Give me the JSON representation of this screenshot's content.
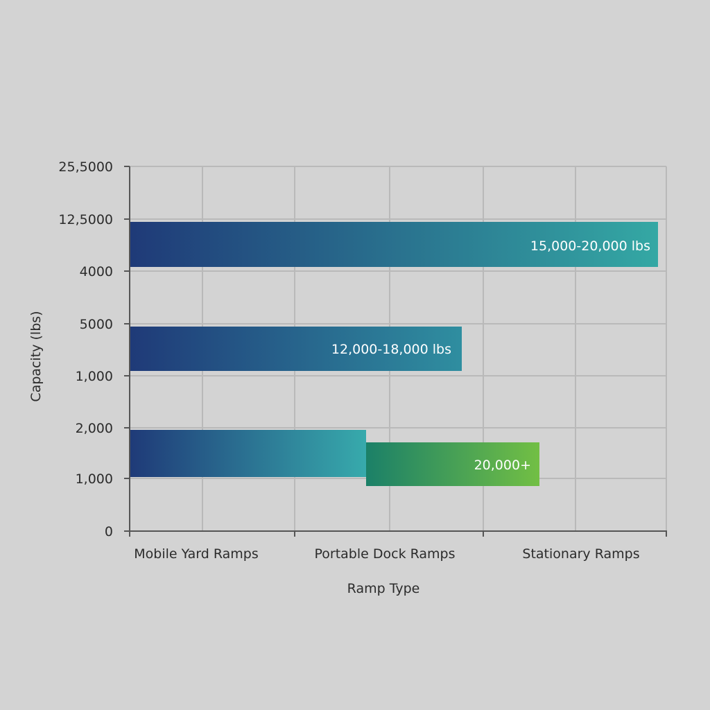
{
  "chart_data": {
    "type": "bar",
    "orientation": "horizontal",
    "title": "",
    "xlabel": "Ramp Type",
    "ylabel": "Capacity (lbs)",
    "y_tick_labels": [
      "25,5000",
      "12,5000",
      "4000",
      "5000",
      "1,000",
      "2,000",
      "1,000",
      "0"
    ],
    "categories": [
      "Mobile Yard Ramps",
      "Portable Dock Ramps",
      "Stationary Ramps"
    ],
    "grid": true,
    "bars": [
      {
        "label": "15,000-20,000 lbs",
        "color_start": "#1f3a78",
        "color_end": "#34a8a4"
      },
      {
        "label": "12,000-18,000 lbs",
        "color_start": "#1f3a78",
        "color_end": "#2f8ea0"
      },
      {
        "label": "",
        "color_start": "#1f3a78",
        "color_end": "#37aaac"
      },
      {
        "label": "20,000+",
        "color_start": "#1b8068",
        "color_end": "#72bf44"
      }
    ]
  }
}
